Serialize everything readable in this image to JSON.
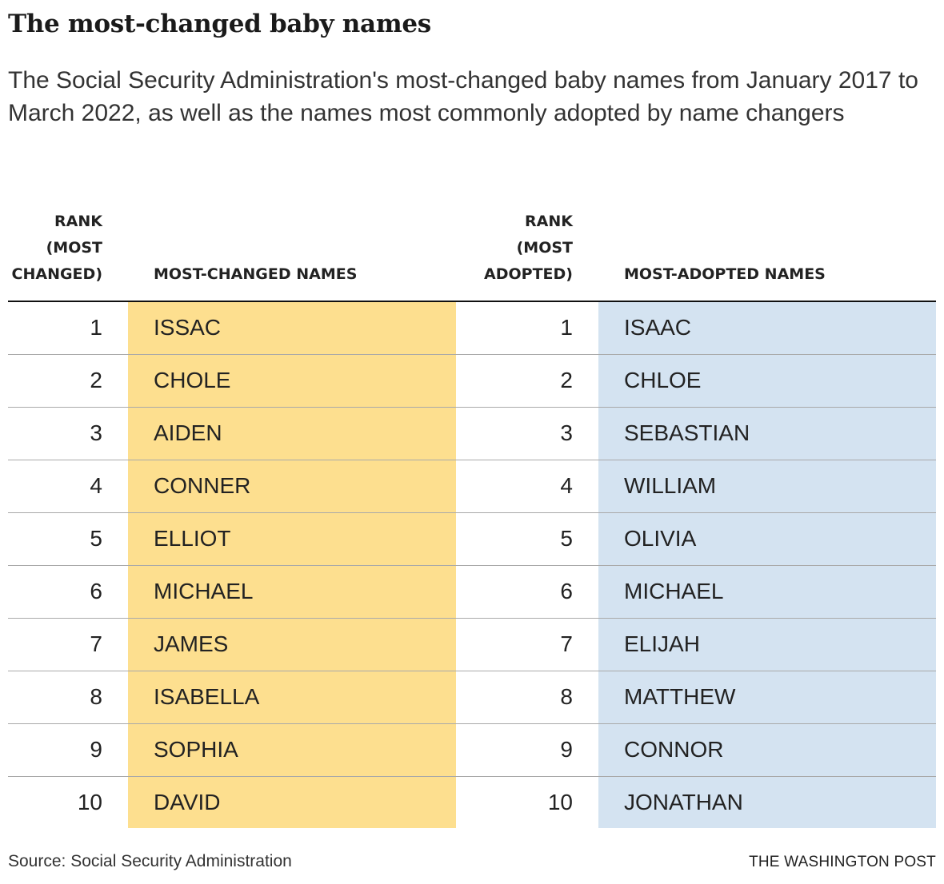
{
  "title": "The most-changed baby names",
  "subtitle": "The Social Security Administration's most-changed baby names from January 2017 to March 2022, as well as the names most commonly adopted by name changers",
  "headers": {
    "rank_changed": "RANK\n(MOST\nCHANGED)",
    "names_changed": "MOST-CHANGED NAMES",
    "rank_adopted": "RANK\n(MOST\nADOPTED)",
    "names_adopted": "MOST-ADOPTED NAMES"
  },
  "colors": {
    "changed_band": "#fddf8f",
    "adopted_band": "#d4e3f1"
  },
  "chart_data": {
    "type": "table",
    "columns": [
      "RANK (MOST CHANGED)",
      "MOST-CHANGED NAMES",
      "RANK (MOST ADOPTED)",
      "MOST-ADOPTED NAMES"
    ],
    "rows": [
      {
        "rank_changed": "1",
        "changed": "ISSAC",
        "rank_adopted": "1",
        "adopted": "ISAAC"
      },
      {
        "rank_changed": "2",
        "changed": "CHOLE",
        "rank_adopted": "2",
        "adopted": "CHLOE"
      },
      {
        "rank_changed": "3",
        "changed": "AIDEN",
        "rank_adopted": "3",
        "adopted": "SEBASTIAN"
      },
      {
        "rank_changed": "4",
        "changed": "CONNER",
        "rank_adopted": "4",
        "adopted": "WILLIAM"
      },
      {
        "rank_changed": "5",
        "changed": "ELLIOT",
        "rank_adopted": "5",
        "adopted": "OLIVIA"
      },
      {
        "rank_changed": "6",
        "changed": "MICHAEL",
        "rank_adopted": "6",
        "adopted": "MICHAEL"
      },
      {
        "rank_changed": "7",
        "changed": "JAMES",
        "rank_adopted": "7",
        "adopted": "ELIJAH"
      },
      {
        "rank_changed": "8",
        "changed": "ISABELLA",
        "rank_adopted": "8",
        "adopted": "MATTHEW"
      },
      {
        "rank_changed": "9",
        "changed": "SOPHIA",
        "rank_adopted": "9",
        "adopted": "CONNOR"
      },
      {
        "rank_changed": "10",
        "changed": "DAVID",
        "rank_adopted": "10",
        "adopted": "JONATHAN"
      }
    ]
  },
  "source": "Source: Social Security Administration",
  "credit": "THE WASHINGTON POST"
}
